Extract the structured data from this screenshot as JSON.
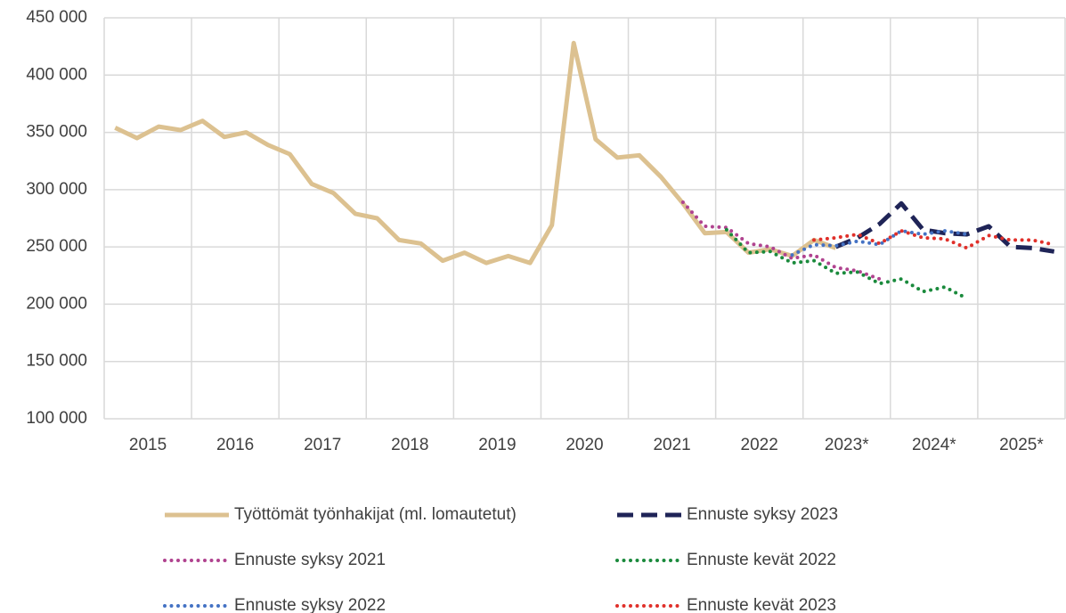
{
  "chart_data": {
    "type": "line",
    "categories": [
      null,
      "2015",
      null,
      null,
      null,
      "2016",
      null,
      null,
      null,
      "2017",
      null,
      null,
      null,
      "2018",
      null,
      null,
      null,
      "2019",
      null,
      null,
      null,
      "2020",
      null,
      null,
      null,
      "2021",
      null,
      null,
      null,
      "2022",
      null,
      null,
      null,
      "2023*",
      null,
      null,
      null,
      "2024*",
      null,
      null,
      null,
      "2025*",
      null,
      null
    ],
    "ylim": [
      100000,
      450000
    ],
    "yticks": [
      {
        "value": 100000,
        "label": "100 000"
      },
      {
        "value": 150000,
        "label": "150 000"
      },
      {
        "value": 200000,
        "label": "200 000"
      },
      {
        "value": 250000,
        "label": "250 000"
      },
      {
        "value": 300000,
        "label": "300 000"
      },
      {
        "value": 350000,
        "label": "350 000"
      },
      {
        "value": 400000,
        "label": "400 000"
      },
      {
        "value": 450000,
        "label": "450 000"
      }
    ],
    "grid": true,
    "series": [
      {
        "name": "Työttömät työnhakijat (ml. lomautetut)",
        "color": "#dcc190",
        "style": "solid",
        "values": [
          354000,
          345000,
          355000,
          352000,
          360000,
          346000,
          350000,
          339000,
          331000,
          305000,
          297000,
          279000,
          275000,
          256000,
          253000,
          238000,
          245000,
          236000,
          242000,
          236000,
          269000,
          428000,
          344000,
          328000,
          330000,
          311000,
          288000,
          262000,
          263000,
          245000,
          248000,
          242000,
          256000,
          249000,
          null,
          null,
          null,
          null,
          null,
          null,
          null,
          null,
          null,
          null
        ]
      },
      {
        "name": "Ennuste syksy 2023",
        "color": "#1f2457",
        "style": "dashed",
        "values": [
          null,
          null,
          null,
          null,
          null,
          null,
          null,
          null,
          null,
          null,
          null,
          null,
          null,
          null,
          null,
          null,
          null,
          null,
          null,
          null,
          null,
          null,
          null,
          null,
          null,
          null,
          null,
          null,
          null,
          null,
          null,
          null,
          null,
          250000,
          258000,
          270000,
          288000,
          265000,
          262000,
          261000,
          268000,
          250000,
          249000,
          246000
        ]
      },
      {
        "name": "Ennuste syksy 2021",
        "color": "#b0438f",
        "style": "dotted",
        "values": [
          null,
          null,
          null,
          null,
          null,
          null,
          null,
          null,
          null,
          null,
          null,
          null,
          null,
          null,
          null,
          null,
          null,
          null,
          null,
          null,
          null,
          null,
          null,
          null,
          null,
          null,
          289000,
          268000,
          267000,
          253000,
          250000,
          240000,
          243000,
          232000,
          229000,
          222000,
          null,
          null,
          null,
          null,
          null,
          null,
          null,
          null
        ]
      },
      {
        "name": "Ennuste kevät 2022",
        "color": "#1a8a3c",
        "style": "dotted",
        "values": [
          null,
          null,
          null,
          null,
          null,
          null,
          null,
          null,
          null,
          null,
          null,
          null,
          null,
          null,
          null,
          null,
          null,
          null,
          null,
          null,
          null,
          null,
          null,
          null,
          null,
          null,
          null,
          null,
          265000,
          245000,
          246000,
          236000,
          238000,
          227000,
          228000,
          218000,
          222000,
          211000,
          215000,
          205000,
          null,
          null,
          null,
          null
        ]
      },
      {
        "name": "Ennuste syksy 2022",
        "color": "#4472c4",
        "style": "dotted",
        "values": [
          null,
          null,
          null,
          null,
          null,
          null,
          null,
          null,
          null,
          null,
          null,
          null,
          null,
          null,
          null,
          null,
          null,
          null,
          null,
          null,
          null,
          null,
          null,
          null,
          null,
          null,
          null,
          null,
          null,
          null,
          null,
          243000,
          252000,
          251000,
          255000,
          252000,
          264000,
          261000,
          264000,
          261000,
          null,
          null,
          null,
          null
        ]
      },
      {
        "name": "Ennuste kevät 2023",
        "color": "#e0302a",
        "style": "dotted",
        "values": [
          null,
          null,
          null,
          null,
          null,
          null,
          null,
          null,
          null,
          null,
          null,
          null,
          null,
          null,
          null,
          null,
          null,
          null,
          null,
          null,
          null,
          null,
          null,
          null,
          null,
          null,
          null,
          null,
          null,
          null,
          null,
          null,
          256000,
          258000,
          261000,
          253000,
          264000,
          258000,
          257000,
          249000,
          260000,
          256000,
          256000,
          252000
        ]
      }
    ]
  }
}
